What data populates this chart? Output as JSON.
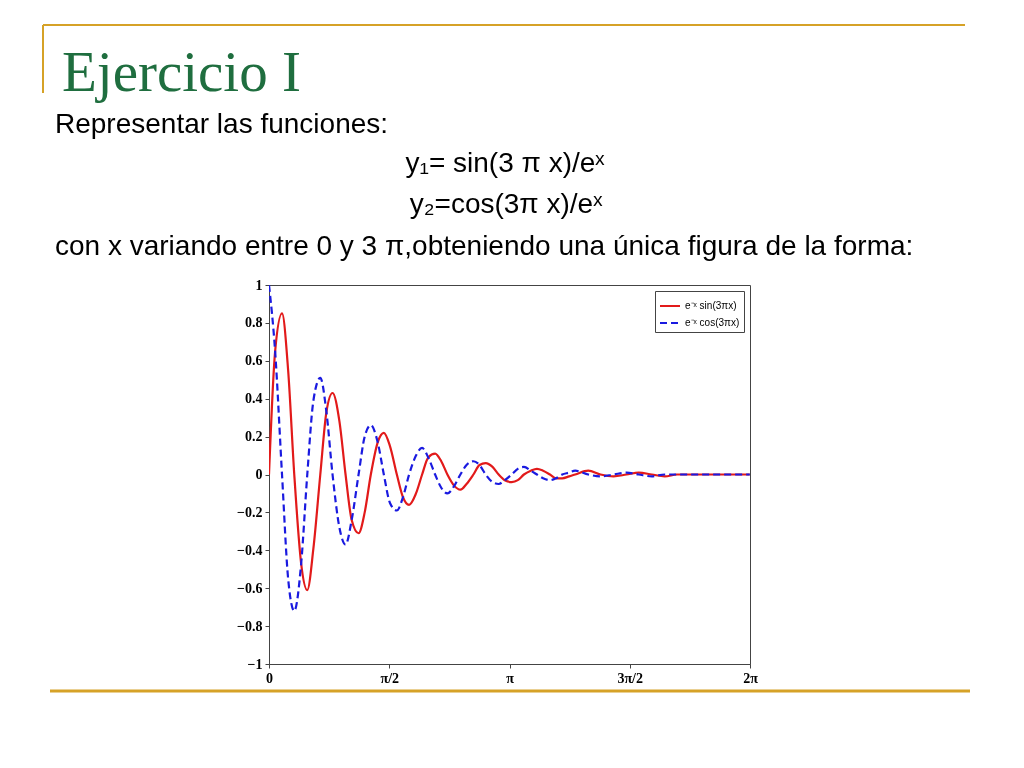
{
  "chart_data": {
    "type": "line",
    "title": "Ejercicio I",
    "annotations": [
      "Representar las funciones:",
      "y₁= sin(3 π x)/eˣ",
      "y₂=cos(3π x)/eˣ",
      "con x variando entre 0 y 3 π,obteniendo una única figura de la forma:"
    ],
    "x": [
      0,
      0.08,
      0.17,
      0.25,
      0.33,
      0.42,
      0.5,
      0.58,
      0.67,
      0.75,
      0.83,
      0.92,
      1,
      1.08,
      1.17,
      1.25,
      1.33,
      1.42,
      1.5,
      1.58,
      1.67,
      1.75,
      1.83,
      1.92,
      2,
      2.08,
      2.17,
      2.25,
      2.33,
      2.42,
      2.5,
      2.58,
      2.67,
      2.75,
      2.83,
      2.92,
      3,
      3.08,
      3.17,
      3.25,
      3.33,
      3.42,
      3.5,
      3.58,
      3.67,
      3.75,
      3.83,
      3.92,
      4,
      4.17,
      4.33,
      4.5,
      4.67,
      4.83,
      5,
      5.17,
      5.33,
      5.5,
      5.67,
      5.83,
      6,
      6.17,
      6.28
    ],
    "series": [
      {
        "name": "e⁻ˣ sin(3πx)",
        "color": "#e21a1a",
        "line_style": "solid",
        "values": [
          0,
          0.65,
          0.85,
          0.55,
          0,
          -0.47,
          -0.61,
          -0.39,
          0,
          0.33,
          0.43,
          0.28,
          0,
          -0.24,
          -0.31,
          -0.2,
          0,
          0.17,
          0.22,
          0.15,
          0,
          -0.12,
          -0.16,
          -0.1,
          0,
          0.09,
          0.11,
          0.07,
          0,
          -0.06,
          -0.08,
          -0.05,
          0,
          0.05,
          0.06,
          0.04,
          0,
          -0.03,
          -0.04,
          -0.03,
          0,
          0.02,
          0.03,
          0.02,
          0,
          -0.02,
          -0.02,
          -0.01,
          0,
          0.02,
          0,
          -0.01,
          0,
          0.01,
          0,
          -0.01,
          0,
          0,
          0,
          0,
          0,
          0,
          0
        ]
      },
      {
        "name": "e⁻ˣ cos(3πx)",
        "color": "#1a1ae0",
        "line_style": "dashed",
        "values": [
          1,
          0.65,
          0,
          -0.55,
          -0.72,
          -0.47,
          0,
          0.39,
          0.51,
          0.33,
          0,
          -0.28,
          -0.37,
          -0.24,
          0,
          0.2,
          0.26,
          0.17,
          0,
          -0.15,
          -0.19,
          -0.12,
          0,
          0.1,
          0.14,
          0.09,
          0,
          -0.07,
          -0.1,
          -0.06,
          0,
          0.05,
          0.07,
          0.05,
          0,
          -0.04,
          -0.05,
          -0.03,
          0,
          0.03,
          0.04,
          0.02,
          0,
          -0.02,
          -0.03,
          -0.02,
          0,
          0.01,
          0.02,
          0,
          -0.01,
          0,
          0.01,
          0,
          -0.01,
          0,
          0,
          0,
          0,
          0,
          0,
          0,
          0
        ]
      }
    ],
    "xlim": [
      0,
      6.283
    ],
    "xticks": [
      0,
      {
        "value": 1.571,
        "label": "π/2"
      },
      {
        "value": 3.142,
        "label": "π"
      },
      {
        "value": 4.712,
        "label": "3π/2"
      },
      {
        "value": 6.283,
        "label": "2π"
      }
    ],
    "ylim": [
      -1,
      1
    ],
    "yticks": [
      -1,
      -0.8,
      -0.6,
      -0.4,
      -0.2,
      0,
      0.2,
      0.4,
      0.6,
      0.8,
      1
    ],
    "legend": "top right"
  }
}
